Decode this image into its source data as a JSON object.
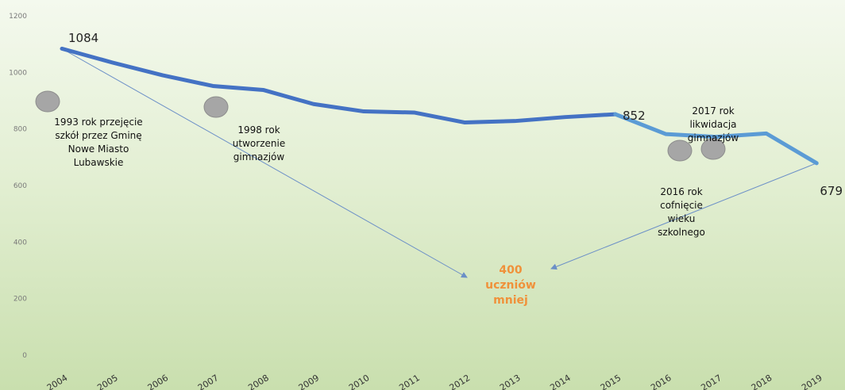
{
  "chart_data": {
    "type": "line",
    "x": [
      "2004",
      "2005",
      "2006",
      "2007",
      "2008",
      "2009",
      "2010",
      "2011",
      "2012",
      "2013",
      "2014",
      "2015",
      "2016",
      "2017",
      "2018",
      "2019"
    ],
    "series": [
      {
        "values": [
          1084,
          1035,
          990,
          952,
          938,
          888,
          862,
          858,
          823,
          828,
          842,
          852,
          782,
          772,
          784,
          679
        ]
      }
    ],
    "ylim": [
      0,
      1200
    ],
    "yticks": [
      0,
      200,
      400,
      600,
      800,
      1000,
      1200
    ],
    "data_labels": [
      {
        "x": "2004",
        "text": "1084"
      },
      {
        "x": "2015",
        "text": "852"
      },
      {
        "x": "2019",
        "text": "679"
      }
    ],
    "annotations": [
      {
        "id": "a1993",
        "lines": [
          "1993 rok   przejęcie",
          "szkół przez Gminę",
          "Nowe Miasto",
          "Lubawskie"
        ]
      },
      {
        "id": "a1998",
        "lines": [
          "1998 rok",
          "utworzenie",
          "gimnazjów"
        ]
      },
      {
        "id": "a2017",
        "lines": [
          "2017 rok",
          "likwidacja",
          "gimnazjów"
        ]
      },
      {
        "id": "a2016",
        "lines": [
          "2016 rok",
          "cofnięcie",
          "wieku",
          "szkolnego"
        ]
      }
    ],
    "center_note": [
      "400",
      "uczniów",
      "mniej"
    ],
    "colors": {
      "line_main": "#4472c4",
      "line_end": "#5b9bd5",
      "arrow": "#6b8fc7",
      "marker": "#a6a6a6",
      "note": "#f0913a"
    }
  }
}
